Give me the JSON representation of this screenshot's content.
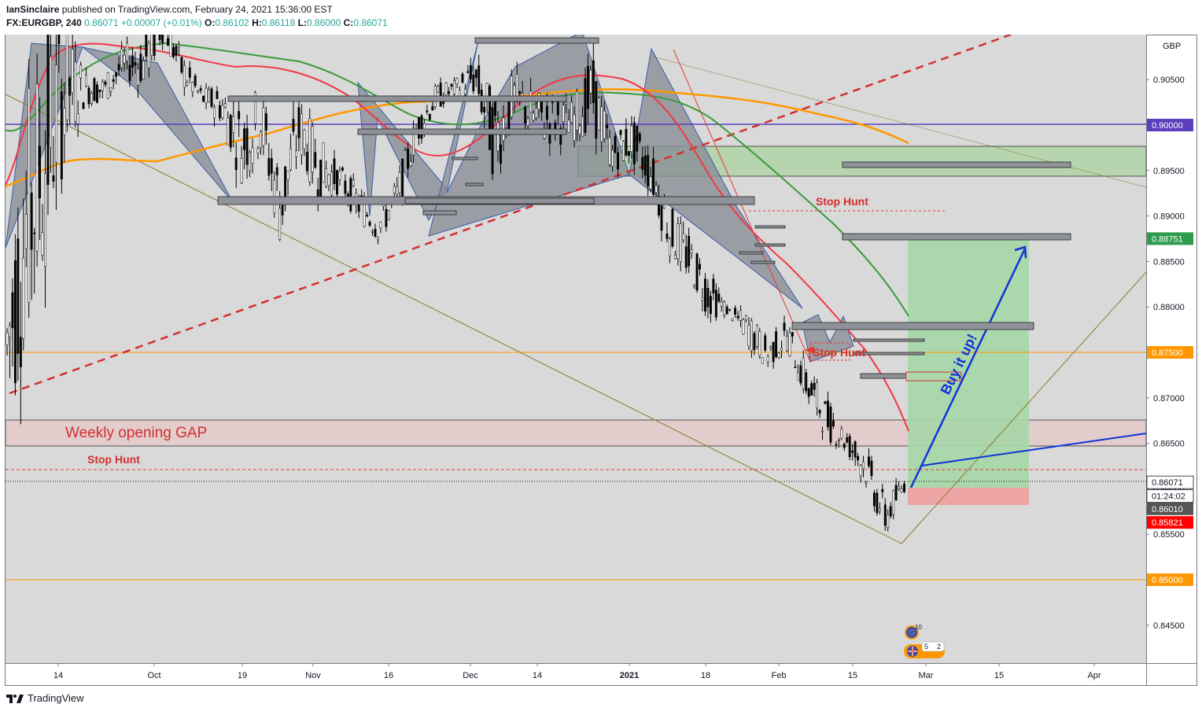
{
  "header": {
    "author": "IanSinclaire",
    "published_text": " published on TradingView.com, February 24, 2021 15:36:00 EST",
    "symbol": "FX:EURGBP, 240",
    "last": "0.86071",
    "change": "+0.00007 (+0.01%)",
    "o_label": "O:",
    "o": "0.86102",
    "h_label": "H:",
    "h": "0.86118",
    "l_label": "L:",
    "l": "0.86000",
    "c_label": "C:",
    "c": "0.86071"
  },
  "footer": {
    "brand": "TradingView"
  },
  "colors": {
    "background": "#d9d9d9",
    "accent_orange": "#ff9800",
    "ema_red": "#f23645",
    "ema_green": "#3a9a3a",
    "ema_orange": "#ff9800",
    "purple_line": "#5b3fbf",
    "annotation_red": "#e53935",
    "arrow_blue": "#1034d6",
    "target_zone": "#a5d6a7",
    "stop_zone": "#ef9a9a"
  },
  "chart_data": {
    "type": "candlestick",
    "symbol": "FX:EURGBP",
    "interval": "240",
    "currency": "GBP",
    "y_range": [
      0.841,
      0.913
    ],
    "x_ticks": [
      "14",
      "Oct",
      "19",
      "Nov",
      "16",
      "Dec",
      "14",
      "2021",
      "18",
      "Feb",
      "15",
      "Mar",
      "15",
      "Apr"
    ],
    "y_ticks": [
      "0.84500",
      "0.85000",
      "0.85500",
      "0.86000",
      "0.86500",
      "0.87000",
      "0.87500",
      "0.88000",
      "0.88500",
      "0.89000",
      "0.89500",
      "0.90000",
      "0.90500"
    ],
    "price_badges": [
      {
        "label": "0.90000",
        "value": 0.9,
        "color": "#5b3fbf"
      },
      {
        "label": "0.88751",
        "value": 0.88751,
        "color": "#2e9c4c"
      },
      {
        "label": "0.87500",
        "value": 0.875,
        "color": "#ff9800"
      },
      {
        "label": "0.86071",
        "value": 0.86071,
        "color": "#ffffff"
      },
      {
        "label": "01:24:02",
        "value": 0.8592,
        "color": "#ffffff"
      },
      {
        "label": "0.86010",
        "value": 0.8578,
        "color": "#555555"
      },
      {
        "label": "0.85821",
        "value": 0.8563,
        "color": "#ff0000"
      },
      {
        "label": "0.85000",
        "value": 0.85,
        "color": "#ff9800"
      }
    ],
    "annotations": {
      "gap_label": "Weekly opening GAP",
      "stop_hunt_1": "Stop Hunt",
      "stop_hunt_2": "Stop Hunt",
      "stop_hunt_3": "Stop Hunt",
      "buy": "Buy it up!"
    },
    "events": {
      "eu": "10",
      "uk": "5",
      "uk_b": "2"
    },
    "price_path": [
      [
        0.8665,
        0.8855
      ],
      [
        0.8745,
        0.9035
      ],
      [
        0.8835,
        0.9115
      ],
      [
        0.8962,
        0.9118
      ],
      [
        0.9021,
        0.9062
      ],
      [
        0.9022,
        0.9056
      ],
      [
        0.9048,
        0.9089
      ],
      [
        0.9038,
        0.91
      ],
      [
        0.9091,
        0.9135
      ],
      [
        0.9038,
        0.908
      ],
      [
        0.9017,
        0.9042
      ],
      [
        0.8999,
        0.9046
      ],
      [
        0.8934,
        0.9026
      ],
      [
        0.8967,
        0.9046
      ],
      [
        0.8862,
        0.8961
      ],
      [
        0.8959,
        0.9032
      ],
      [
        0.8917,
        0.8987
      ],
      [
        0.8924,
        0.8959
      ],
      [
        0.8894,
        0.8934
      ],
      [
        0.8871,
        0.8905
      ],
      [
        0.8897,
        0.8944
      ],
      [
        0.8975,
        0.9015
      ],
      [
        0.9015,
        0.9046
      ],
      [
        0.9029,
        0.9051
      ],
      [
        0.9029,
        0.9078
      ],
      [
        0.8933,
        0.9034
      ],
      [
        0.9,
        0.906
      ],
      [
        0.898,
        0.904
      ],
      [
        0.8975,
        0.9035
      ],
      [
        0.8982,
        0.9028
      ],
      [
        0.8992,
        0.9077
      ],
      [
        0.8948,
        0.8989
      ],
      [
        0.8957,
        0.901
      ],
      [
        0.8922,
        0.8977
      ],
      [
        0.8853,
        0.8913
      ],
      [
        0.8826,
        0.8879
      ],
      [
        0.8787,
        0.8841
      ],
      [
        0.879,
        0.88
      ],
      [
        0.8755,
        0.8797
      ],
      [
        0.8731,
        0.8765
      ],
      [
        0.8751,
        0.8786
      ],
      [
        0.8691,
        0.8739
      ],
      [
        0.8655,
        0.87
      ],
      [
        0.8638,
        0.8668
      ],
      [
        0.8602,
        0.865
      ],
      [
        0.8544,
        0.8593
      ],
      [
        0.8595,
        0.8614
      ]
    ]
  }
}
